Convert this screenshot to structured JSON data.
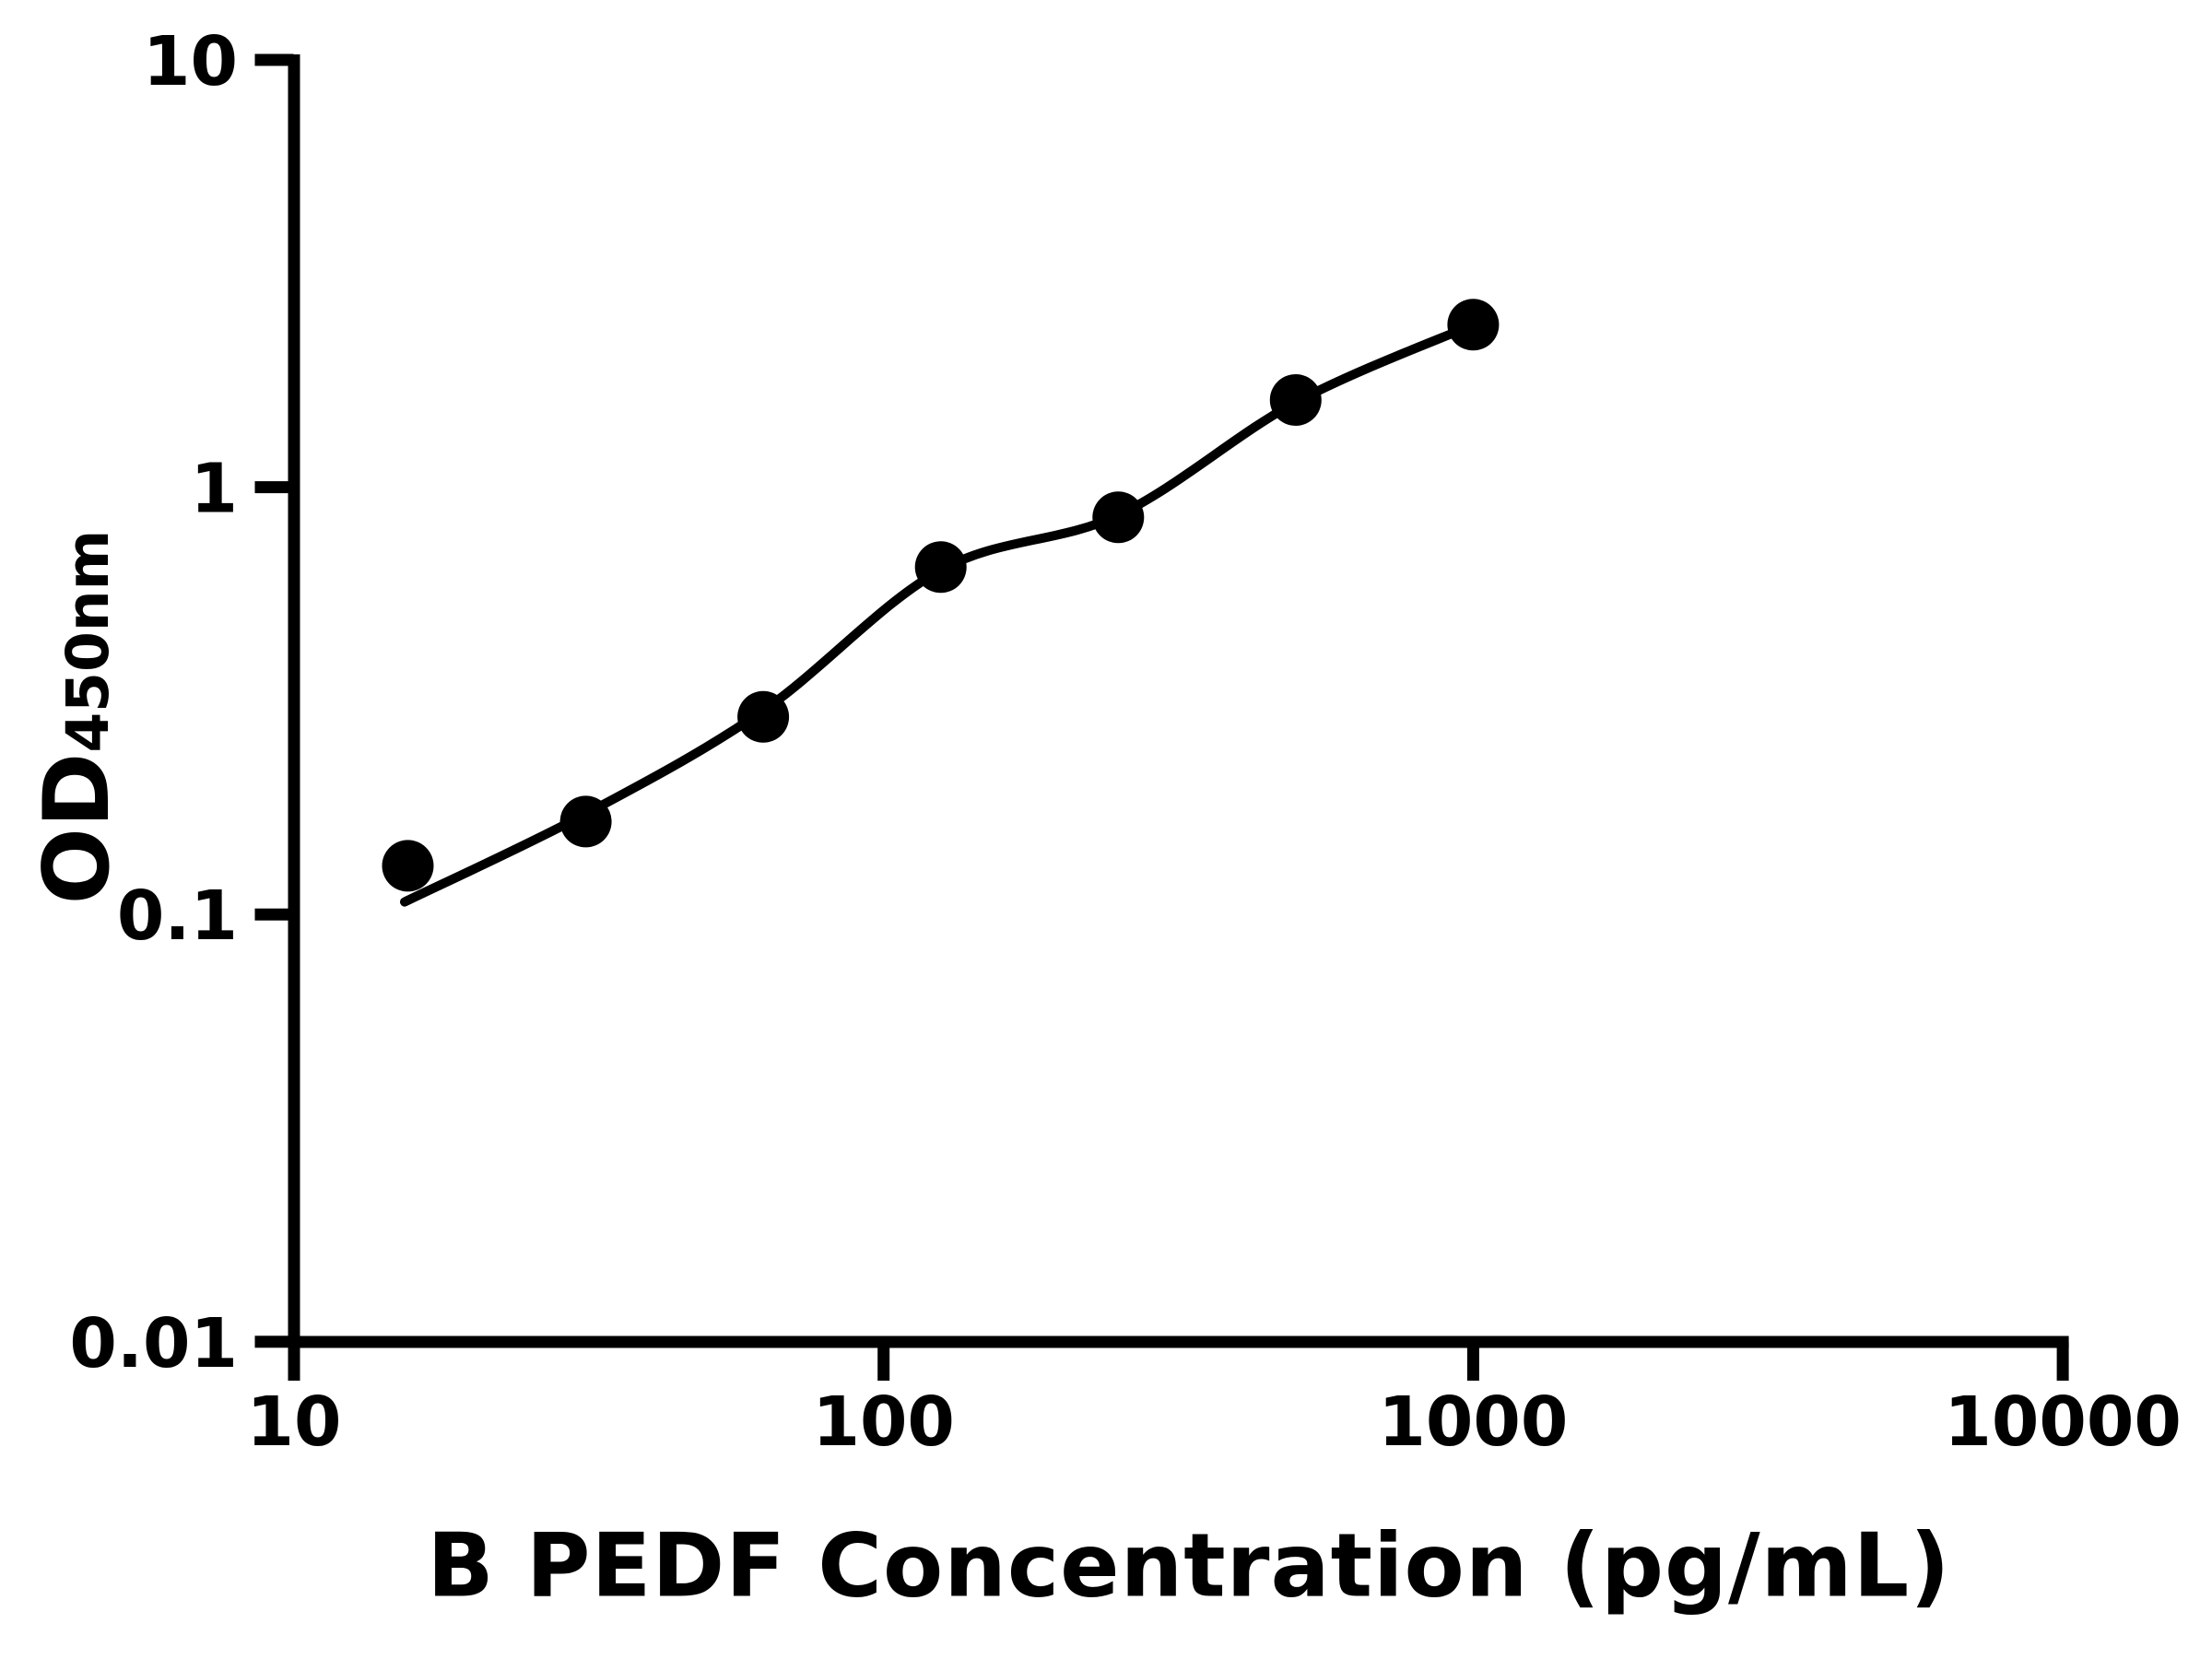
{
  "chart_data": {
    "type": "scatter",
    "subtype": "elisa-standard-curve-with-fit-line",
    "xlabel": "B PEDF Concentration (pg/mL)",
    "ylabel_main": "OD",
    "ylabel_sub": "450nm",
    "x_scale": "log10",
    "y_scale": "log10",
    "xlim": [
      10,
      10000
    ],
    "ylim": [
      0.01,
      10
    ],
    "x_ticks": [
      10,
      100,
      1000,
      10000
    ],
    "x_tick_labels": [
      "10",
      "100",
      "1000",
      "10000"
    ],
    "y_ticks": [
      10,
      1,
      0.1,
      0.01
    ],
    "y_tick_labels": [
      "10",
      "1",
      "0.1",
      "0.01"
    ],
    "grid": false,
    "legend": false,
    "series": [
      {
        "name": "standards",
        "marker": "filled-circle",
        "x": [
          15.6,
          31.25,
          62.5,
          125,
          250,
          500,
          1000
        ],
        "y": [
          0.13,
          0.165,
          0.29,
          0.65,
          0.85,
          1.6,
          2.4
        ]
      }
    ],
    "fit_curve": {
      "name": "4PL-fit-line",
      "x": [
        15.4,
        31.25,
        62.5,
        125,
        250,
        500,
        1000
      ],
      "y": [
        0.107,
        0.172,
        0.3,
        0.64,
        0.86,
        1.58,
        2.4
      ]
    },
    "colors": {
      "foreground": "#000000",
      "background": "#ffffff"
    }
  }
}
